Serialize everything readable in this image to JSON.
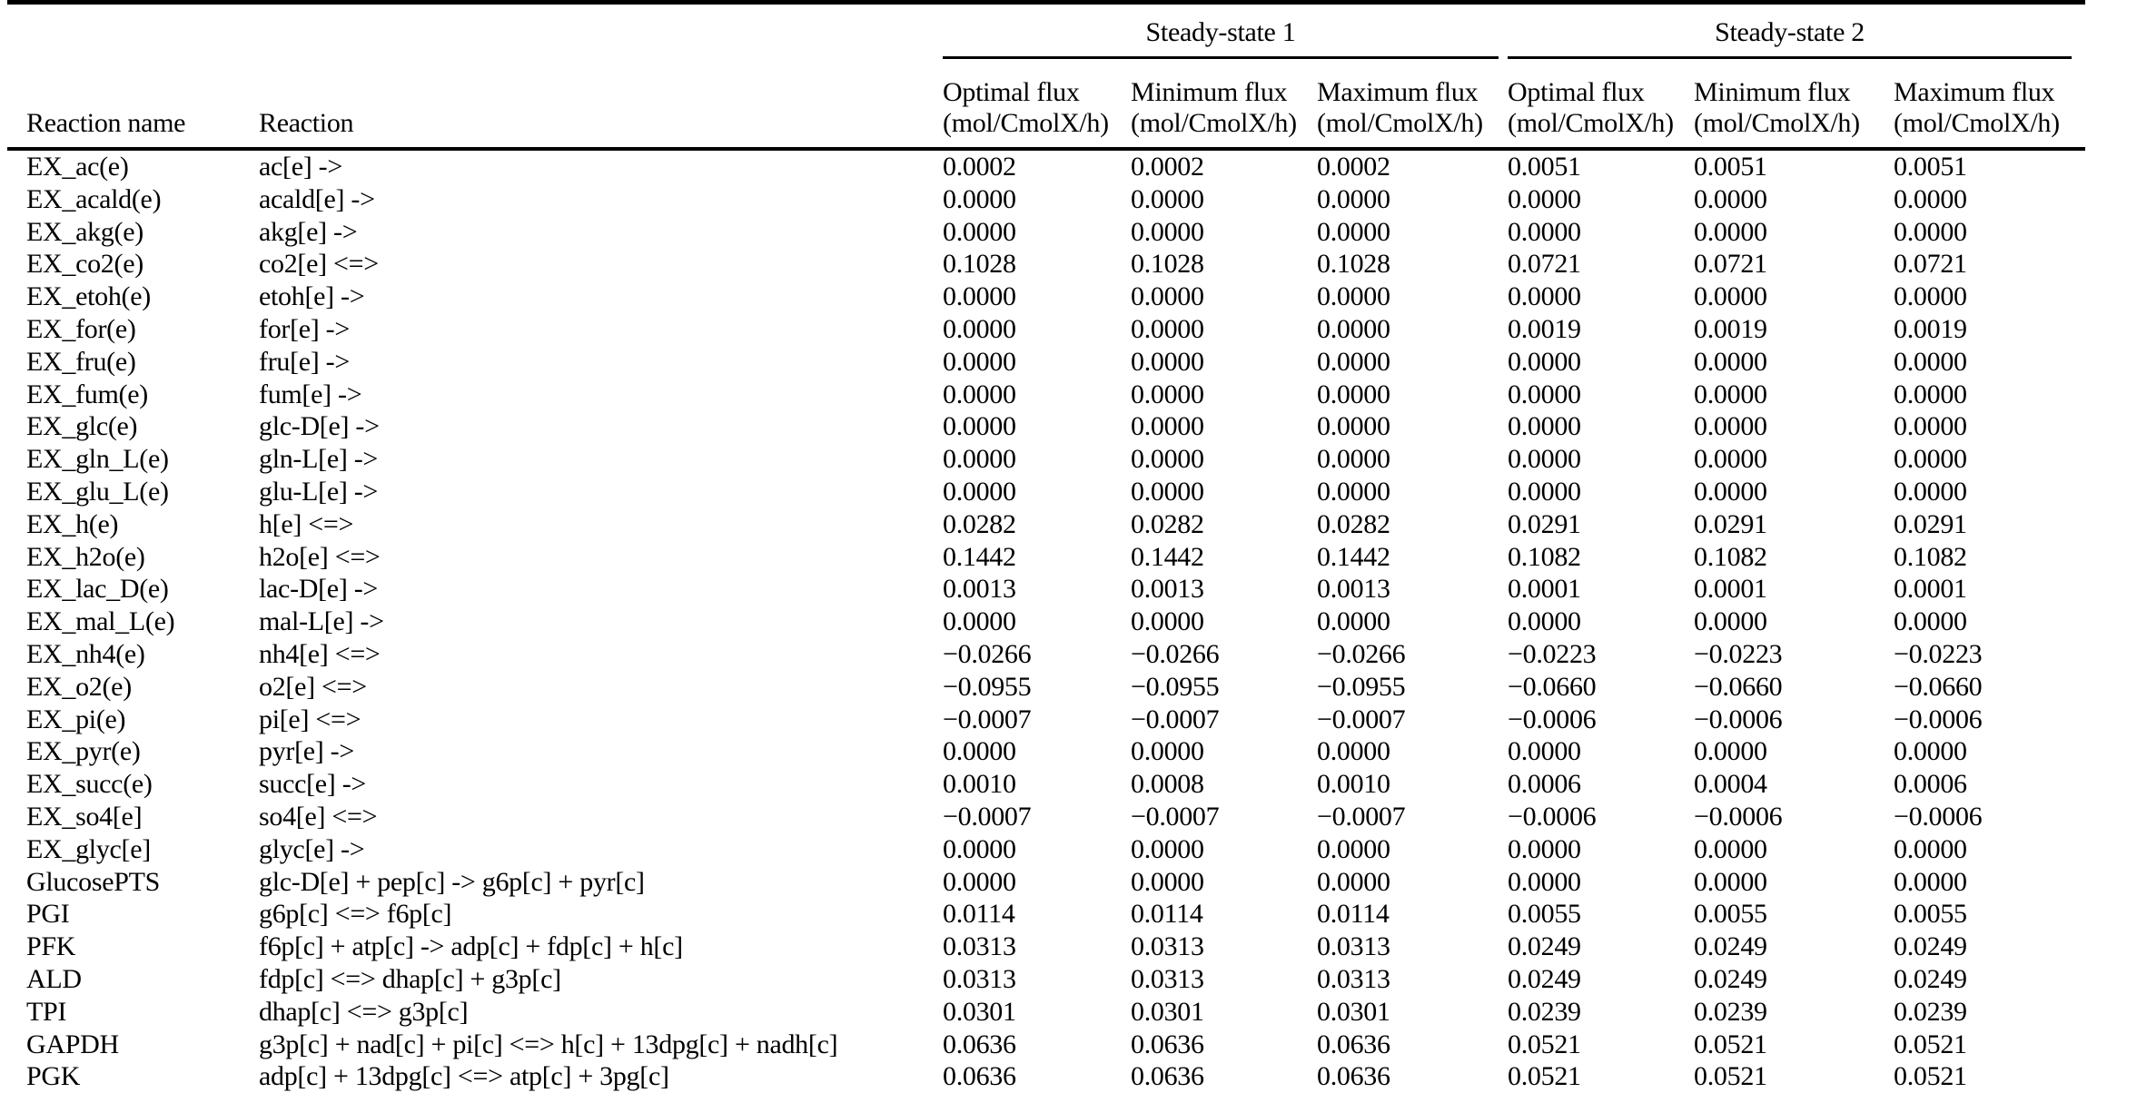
{
  "page": {
    "background_color": "#ffffff",
    "text_color": "#000000",
    "rule_color": "#000000"
  },
  "table": {
    "group_headers": [
      {
        "label": "Steady-state 1"
      },
      {
        "label": "Steady-state 2"
      }
    ],
    "column_headers": {
      "reaction_name": "Reaction name",
      "reaction": "Reaction",
      "flux": [
        {
          "title": "Optimal flux",
          "unit": "(mol/CmolX/h)"
        },
        {
          "title": "Minimum flux",
          "unit": "(mol/CmolX/h)"
        },
        {
          "title": "Maximum flux",
          "unit": "(mol/CmolX/h)"
        },
        {
          "title": "Optimal flux",
          "unit": "(mol/CmolX/h)"
        },
        {
          "title": "Minimum flux",
          "unit": "(mol/CmolX/h)"
        },
        {
          "title": "Maximum flux",
          "unit": "(mol/CmolX/h)"
        }
      ]
    },
    "rows": [
      {
        "name": "EX_ac(e)",
        "reaction": "ac[e] ->",
        "values": [
          "0.0002",
          "0.0002",
          "0.0002",
          "0.0051",
          "0.0051",
          "0.0051"
        ]
      },
      {
        "name": "EX_acald(e)",
        "reaction": "acald[e] ->",
        "values": [
          "0.0000",
          "0.0000",
          "0.0000",
          "0.0000",
          "0.0000",
          "0.0000"
        ]
      },
      {
        "name": "EX_akg(e)",
        "reaction": "akg[e] ->",
        "values": [
          "0.0000",
          "0.0000",
          "0.0000",
          "0.0000",
          "0.0000",
          "0.0000"
        ]
      },
      {
        "name": "EX_co2(e)",
        "reaction": "co2[e] <=>",
        "values": [
          "0.1028",
          "0.1028",
          "0.1028",
          "0.0721",
          "0.0721",
          "0.0721"
        ]
      },
      {
        "name": "EX_etoh(e)",
        "reaction": "etoh[e] ->",
        "values": [
          "0.0000",
          "0.0000",
          "0.0000",
          "0.0000",
          "0.0000",
          "0.0000"
        ]
      },
      {
        "name": "EX_for(e)",
        "reaction": "for[e] ->",
        "values": [
          "0.0000",
          "0.0000",
          "0.0000",
          "0.0019",
          "0.0019",
          "0.0019"
        ]
      },
      {
        "name": "EX_fru(e)",
        "reaction": "fru[e] ->",
        "values": [
          "0.0000",
          "0.0000",
          "0.0000",
          "0.0000",
          "0.0000",
          "0.0000"
        ]
      },
      {
        "name": "EX_fum(e)",
        "reaction": "fum[e] ->",
        "values": [
          "0.0000",
          "0.0000",
          "0.0000",
          "0.0000",
          "0.0000",
          "0.0000"
        ]
      },
      {
        "name": "EX_glc(e)",
        "reaction": "glc-D[e] ->",
        "values": [
          "0.0000",
          "0.0000",
          "0.0000",
          "0.0000",
          "0.0000",
          "0.0000"
        ]
      },
      {
        "name": "EX_gln_L(e)",
        "reaction": "gln-L[e] ->",
        "values": [
          "0.0000",
          "0.0000",
          "0.0000",
          "0.0000",
          "0.0000",
          "0.0000"
        ]
      },
      {
        "name": "EX_glu_L(e)",
        "reaction": "glu-L[e] ->",
        "values": [
          "0.0000",
          "0.0000",
          "0.0000",
          "0.0000",
          "0.0000",
          "0.0000"
        ]
      },
      {
        "name": "EX_h(e)",
        "reaction": "h[e] <=>",
        "values": [
          "0.0282",
          "0.0282",
          "0.0282",
          "0.0291",
          "0.0291",
          "0.0291"
        ]
      },
      {
        "name": "EX_h2o(e)",
        "reaction": "h2o[e] <=>",
        "values": [
          "0.1442",
          "0.1442",
          "0.1442",
          "0.1082",
          "0.1082",
          "0.1082"
        ]
      },
      {
        "name": "EX_lac_D(e)",
        "reaction": "lac-D[e] ->",
        "values": [
          "0.0013",
          "0.0013",
          "0.0013",
          "0.0001",
          "0.0001",
          "0.0001"
        ]
      },
      {
        "name": "EX_mal_L(e)",
        "reaction": "mal-L[e] ->",
        "values": [
          "0.0000",
          "0.0000",
          "0.0000",
          "0.0000",
          "0.0000",
          "0.0000"
        ]
      },
      {
        "name": "EX_nh4(e)",
        "reaction": "nh4[e] <=>",
        "values": [
          "−0.0266",
          "−0.0266",
          "−0.0266",
          "−0.0223",
          "−0.0223",
          "−0.0223"
        ]
      },
      {
        "name": "EX_o2(e)",
        "reaction": "o2[e] <=>",
        "values": [
          "−0.0955",
          "−0.0955",
          "−0.0955",
          "−0.0660",
          "−0.0660",
          "−0.0660"
        ]
      },
      {
        "name": "EX_pi(e)",
        "reaction": "pi[e] <=>",
        "values": [
          "−0.0007",
          "−0.0007",
          "−0.0007",
          "−0.0006",
          "−0.0006",
          "−0.0006"
        ]
      },
      {
        "name": "EX_pyr(e)",
        "reaction": "pyr[e] ->",
        "values": [
          "0.0000",
          "0.0000",
          "0.0000",
          "0.0000",
          "0.0000",
          "0.0000"
        ]
      },
      {
        "name": "EX_succ(e)",
        "reaction": "succ[e] ->",
        "values": [
          "0.0010",
          "0.0008",
          "0.0010",
          "0.0006",
          "0.0004",
          "0.0006"
        ]
      },
      {
        "name": "EX_so4[e]",
        "reaction": "so4[e] <=>",
        "values": [
          "−0.0007",
          "−0.0007",
          "−0.0007",
          "−0.0006",
          "−0.0006",
          "−0.0006"
        ]
      },
      {
        "name": "EX_glyc[e]",
        "reaction": "glyc[e] ->",
        "values": [
          "0.0000",
          "0.0000",
          "0.0000",
          "0.0000",
          "0.0000",
          "0.0000"
        ]
      },
      {
        "name": "GlucosePTS",
        "reaction": "glc-D[e] + pep[c] -> g6p[c] + pyr[c]",
        "values": [
          "0.0000",
          "0.0000",
          "0.0000",
          "0.0000",
          "0.0000",
          "0.0000"
        ]
      },
      {
        "name": "PGI",
        "reaction": "g6p[c] <=> f6p[c]",
        "values": [
          "0.0114",
          "0.0114",
          "0.0114",
          "0.0055",
          "0.0055",
          "0.0055"
        ]
      },
      {
        "name": "PFK",
        "reaction": "f6p[c] + atp[c] -> adp[c] + fdp[c] + h[c]",
        "values": [
          "0.0313",
          "0.0313",
          "0.0313",
          "0.0249",
          "0.0249",
          "0.0249"
        ]
      },
      {
        "name": "ALD",
        "reaction": "fdp[c] <=> dhap[c] + g3p[c]",
        "values": [
          "0.0313",
          "0.0313",
          "0.0313",
          "0.0249",
          "0.0249",
          "0.0249"
        ]
      },
      {
        "name": "TPI",
        "reaction": "dhap[c] <=> g3p[c]",
        "values": [
          "0.0301",
          "0.0301",
          "0.0301",
          "0.0239",
          "0.0239",
          "0.0239"
        ]
      },
      {
        "name": "GAPDH",
        "reaction": "g3p[c] + nad[c] + pi[c] <=> h[c] + 13dpg[c] + nadh[c]",
        "values": [
          "0.0636",
          "0.0636",
          "0.0636",
          "0.0521",
          "0.0521",
          "0.0521"
        ]
      },
      {
        "name": "PGK",
        "reaction": "adp[c] + 13dpg[c] <=> atp[c] + 3pg[c]",
        "values": [
          "0.0636",
          "0.0636",
          "0.0636",
          "0.0521",
          "0.0521",
          "0.0521"
        ]
      }
    ]
  }
}
